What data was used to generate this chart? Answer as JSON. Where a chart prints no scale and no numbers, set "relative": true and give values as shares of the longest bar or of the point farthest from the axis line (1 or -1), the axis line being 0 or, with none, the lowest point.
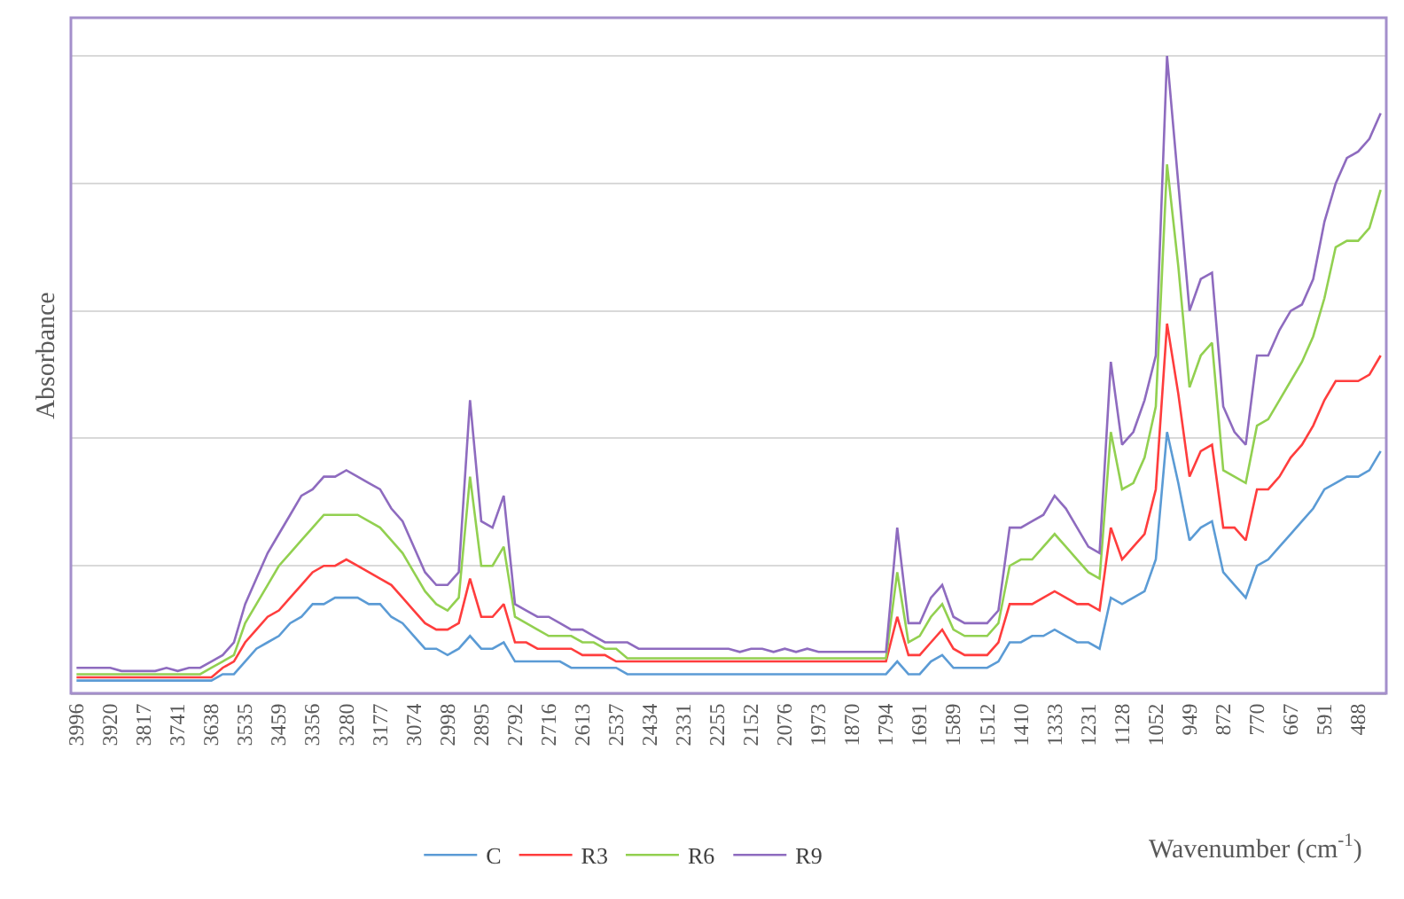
{
  "chart_data": {
    "type": "line",
    "relative": true,
    "grid": "y",
    "legend": "bottom",
    "marker": "none",
    "line_style": "solid",
    "ylabel": "Absorbance",
    "xlabel": "Wavenumber (cm$^{-1}$)",
    "categories": [
      "3996",
      null,
      null,
      "3920",
      null,
      null,
      "3817",
      null,
      null,
      "3741",
      null,
      null,
      "3638",
      null,
      null,
      "3535",
      null,
      null,
      "3459",
      null,
      null,
      "3356",
      null,
      null,
      "3280",
      null,
      null,
      "3177",
      null,
      null,
      "3074",
      null,
      null,
      "2998",
      null,
      null,
      "2895",
      null,
      null,
      "2792",
      null,
      null,
      "2716",
      null,
      null,
      "2613",
      null,
      null,
      "2537",
      null,
      null,
      "2434",
      null,
      null,
      "2331",
      null,
      null,
      "2255",
      null,
      null,
      "2152",
      null,
      null,
      "2076",
      null,
      null,
      "1973",
      null,
      null,
      "1870",
      null,
      null,
      "1794",
      null,
      null,
      "1691",
      null,
      null,
      "1589",
      null,
      null,
      "1512",
      null,
      null,
      "1410",
      null,
      null,
      "1333",
      null,
      null,
      "1231",
      null,
      null,
      "1128",
      null,
      null,
      "1052",
      null,
      null,
      "949",
      null,
      null,
      "872",
      null,
      null,
      "770",
      null,
      null,
      "667",
      null,
      null,
      "591",
      null,
      null,
      "488",
      null,
      null
    ],
    "series": [
      {
        "name": "C",
        "color": "#5b9bd5",
        "values": [
          0.02,
          0.02,
          0.02,
          0.02,
          0.02,
          0.02,
          0.02,
          0.02,
          0.02,
          0.02,
          0.02,
          0.02,
          0.02,
          0.03,
          0.03,
          0.05,
          0.07,
          0.08,
          0.09,
          0.11,
          0.12,
          0.14,
          0.14,
          0.15,
          0.15,
          0.15,
          0.14,
          0.14,
          0.12,
          0.11,
          0.09,
          0.07,
          0.07,
          0.06,
          0.07,
          0.09,
          0.07,
          0.07,
          0.08,
          0.05,
          0.05,
          0.05,
          0.05,
          0.05,
          0.04,
          0.04,
          0.04,
          0.04,
          0.04,
          0.03,
          0.03,
          0.03,
          0.03,
          0.03,
          0.03,
          0.03,
          0.03,
          0.03,
          0.03,
          0.03,
          0.03,
          0.03,
          0.03,
          0.03,
          0.03,
          0.03,
          0.03,
          0.03,
          0.03,
          0.03,
          0.03,
          0.03,
          0.03,
          0.05,
          0.03,
          0.03,
          0.05,
          0.06,
          0.04,
          0.04,
          0.04,
          0.04,
          0.05,
          0.08,
          0.08,
          0.09,
          0.09,
          0.1,
          0.09,
          0.08,
          0.08,
          0.07,
          0.15,
          0.14,
          0.15,
          0.16,
          0.21,
          0.41,
          0.33,
          0.24,
          0.26,
          0.27,
          0.19,
          0.17,
          0.15,
          0.2,
          0.21,
          0.23,
          0.25,
          0.27,
          0.29,
          0.32,
          0.33,
          0.34,
          0.34,
          0.35,
          0.38
        ]
      },
      {
        "name": "R3",
        "color": "#ff3d3d",
        "values": [
          0.025,
          0.025,
          0.025,
          0.025,
          0.025,
          0.025,
          0.025,
          0.025,
          0.025,
          0.025,
          0.025,
          0.025,
          0.025,
          0.04,
          0.05,
          0.08,
          0.1,
          0.12,
          0.13,
          0.15,
          0.17,
          0.19,
          0.2,
          0.2,
          0.21,
          0.2,
          0.19,
          0.18,
          0.17,
          0.15,
          0.13,
          0.11,
          0.1,
          0.1,
          0.11,
          0.18,
          0.12,
          0.12,
          0.14,
          0.08,
          0.08,
          0.07,
          0.07,
          0.07,
          0.07,
          0.06,
          0.06,
          0.06,
          0.05,
          0.05,
          0.05,
          0.05,
          0.05,
          0.05,
          0.05,
          0.05,
          0.05,
          0.05,
          0.05,
          0.05,
          0.05,
          0.05,
          0.05,
          0.05,
          0.05,
          0.05,
          0.05,
          0.05,
          0.05,
          0.05,
          0.05,
          0.05,
          0.05,
          0.12,
          0.06,
          0.06,
          0.08,
          0.1,
          0.07,
          0.06,
          0.06,
          0.06,
          0.08,
          0.14,
          0.14,
          0.14,
          0.15,
          0.16,
          0.15,
          0.14,
          0.14,
          0.13,
          0.26,
          0.21,
          0.23,
          0.25,
          0.32,
          0.58,
          0.47,
          0.34,
          0.38,
          0.39,
          0.26,
          0.26,
          0.24,
          0.32,
          0.32,
          0.34,
          0.37,
          0.39,
          0.42,
          0.46,
          0.49,
          0.49,
          0.49,
          0.5,
          0.53
        ]
      },
      {
        "name": "R6",
        "color": "#92d050",
        "values": [
          0.03,
          0.03,
          0.03,
          0.03,
          0.03,
          0.03,
          0.03,
          0.03,
          0.03,
          0.03,
          0.03,
          0.03,
          0.04,
          0.05,
          0.06,
          0.11,
          0.14,
          0.17,
          0.2,
          0.22,
          0.24,
          0.26,
          0.28,
          0.28,
          0.28,
          0.28,
          0.27,
          0.26,
          0.24,
          0.22,
          0.19,
          0.16,
          0.14,
          0.13,
          0.15,
          0.34,
          0.2,
          0.2,
          0.23,
          0.12,
          0.11,
          0.1,
          0.09,
          0.09,
          0.09,
          0.08,
          0.08,
          0.07,
          0.07,
          0.055,
          0.055,
          0.055,
          0.055,
          0.055,
          0.055,
          0.055,
          0.055,
          0.055,
          0.055,
          0.055,
          0.055,
          0.055,
          0.055,
          0.055,
          0.055,
          0.055,
          0.055,
          0.055,
          0.055,
          0.055,
          0.055,
          0.055,
          0.055,
          0.19,
          0.08,
          0.09,
          0.12,
          0.14,
          0.1,
          0.09,
          0.09,
          0.09,
          0.11,
          0.2,
          0.21,
          0.21,
          0.23,
          0.25,
          0.23,
          0.21,
          0.19,
          0.18,
          0.41,
          0.32,
          0.33,
          0.37,
          0.45,
          0.83,
          0.67,
          0.48,
          0.53,
          0.55,
          0.35,
          0.34,
          0.33,
          0.42,
          0.43,
          0.46,
          0.49,
          0.52,
          0.56,
          0.62,
          0.7,
          0.71,
          0.71,
          0.73,
          0.79
        ]
      },
      {
        "name": "R9",
        "color": "#8e6bbf",
        "values": [
          0.04,
          0.04,
          0.04,
          0.04,
          0.035,
          0.035,
          0.035,
          0.035,
          0.04,
          0.035,
          0.04,
          0.04,
          0.05,
          0.06,
          0.08,
          0.14,
          0.18,
          0.22,
          0.25,
          0.28,
          0.31,
          0.32,
          0.34,
          0.34,
          0.35,
          0.34,
          0.33,
          0.32,
          0.29,
          0.27,
          0.23,
          0.19,
          0.17,
          0.17,
          0.19,
          0.46,
          0.27,
          0.26,
          0.31,
          0.14,
          0.13,
          0.12,
          0.12,
          0.11,
          0.1,
          0.1,
          0.09,
          0.08,
          0.08,
          0.08,
          0.07,
          0.07,
          0.07,
          0.07,
          0.07,
          0.07,
          0.07,
          0.07,
          0.07,
          0.065,
          0.07,
          0.07,
          0.065,
          0.07,
          0.065,
          0.07,
          0.065,
          0.065,
          0.065,
          0.065,
          0.065,
          0.065,
          0.065,
          0.26,
          0.11,
          0.11,
          0.15,
          0.17,
          0.12,
          0.11,
          0.11,
          0.11,
          0.13,
          0.26,
          0.26,
          0.27,
          0.28,
          0.31,
          0.29,
          0.26,
          0.23,
          0.22,
          0.52,
          0.39,
          0.41,
          0.46,
          0.53,
          1,
          0.8,
          0.6,
          0.65,
          0.66,
          0.45,
          0.41,
          0.39,
          0.53,
          0.53,
          0.57,
          0.6,
          0.61,
          0.65,
          0.74,
          0.8,
          0.84,
          0.85,
          0.87,
          0.91
        ]
      }
    ]
  }
}
